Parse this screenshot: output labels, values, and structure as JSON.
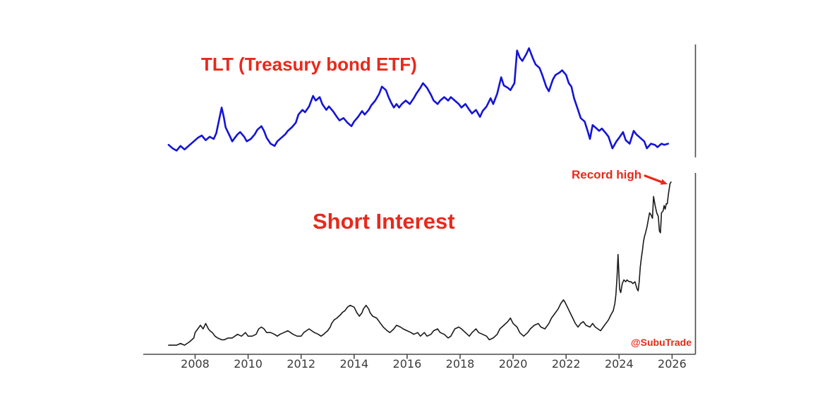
{
  "page": {
    "background": "#ffffff"
  },
  "colors": {
    "red": "#e8291c",
    "blue": "#1414d6",
    "black": "#1a1a1a",
    "axis": "#4a4a4a",
    "tick_label": "#3a3a3a"
  },
  "annotations": {
    "tlt_title": "TLT (Treasury bond ETF)",
    "si_title": "Short Interest",
    "record_high": "Record high",
    "watermark": "@SubuTrade"
  },
  "x_axis": {
    "tick_labels": [
      "2008",
      "2010",
      "2012",
      "2014",
      "2016",
      "2018",
      "2020",
      "2022",
      "2024",
      "2026"
    ]
  },
  "chart_data": [
    {
      "type": "line",
      "title": "TLT (Treasury bond ETF)",
      "panel": "top",
      "color_role": "blue",
      "xlabel": "",
      "ylabel": "",
      "x_unit": "year",
      "y_unit": "price (unlabeled axis, arbitrary 0-100 scale)",
      "xlim": [
        2007.0,
        2026.0
      ],
      "ylim": [
        0,
        100
      ],
      "grid": false,
      "legend": "none",
      "points": [
        [
          2007.0,
          12
        ],
        [
          2007.15,
          9
        ],
        [
          2007.3,
          7
        ],
        [
          2007.45,
          11
        ],
        [
          2007.6,
          8
        ],
        [
          2007.8,
          12
        ],
        [
          2007.95,
          15
        ],
        [
          2008.1,
          18
        ],
        [
          2008.25,
          20
        ],
        [
          2008.4,
          16
        ],
        [
          2008.55,
          19
        ],
        [
          2008.7,
          17
        ],
        [
          2008.8,
          22
        ],
        [
          2008.9,
          33
        ],
        [
          2009.0,
          44
        ],
        [
          2009.08,
          36
        ],
        [
          2009.15,
          27
        ],
        [
          2009.3,
          20
        ],
        [
          2009.4,
          15
        ],
        [
          2009.5,
          18
        ],
        [
          2009.6,
          21
        ],
        [
          2009.7,
          23
        ],
        [
          2009.85,
          19
        ],
        [
          2009.95,
          15
        ],
        [
          2010.1,
          17
        ],
        [
          2010.25,
          21
        ],
        [
          2010.35,
          25
        ],
        [
          2010.5,
          28
        ],
        [
          2010.6,
          24
        ],
        [
          2010.7,
          18
        ],
        [
          2010.85,
          13
        ],
        [
          2011.0,
          11
        ],
        [
          2011.1,
          15
        ],
        [
          2011.25,
          18
        ],
        [
          2011.4,
          21
        ],
        [
          2011.5,
          24
        ],
        [
          2011.65,
          27
        ],
        [
          2011.8,
          31
        ],
        [
          2011.9,
          38
        ],
        [
          2012.05,
          42
        ],
        [
          2012.15,
          40
        ],
        [
          2012.3,
          45
        ],
        [
          2012.45,
          54
        ],
        [
          2012.55,
          50
        ],
        [
          2012.7,
          53
        ],
        [
          2012.8,
          47
        ],
        [
          2012.95,
          42
        ],
        [
          2013.05,
          45
        ],
        [
          2013.2,
          41
        ],
        [
          2013.35,
          36
        ],
        [
          2013.45,
          33
        ],
        [
          2013.6,
          35
        ],
        [
          2013.75,
          31
        ],
        [
          2013.9,
          28
        ],
        [
          2014.0,
          32
        ],
        [
          2014.15,
          36
        ],
        [
          2014.3,
          41
        ],
        [
          2014.4,
          38
        ],
        [
          2014.55,
          42
        ],
        [
          2014.65,
          46
        ],
        [
          2014.8,
          50
        ],
        [
          2014.95,
          56
        ],
        [
          2015.05,
          62
        ],
        [
          2015.2,
          59
        ],
        [
          2015.3,
          53
        ],
        [
          2015.4,
          48
        ],
        [
          2015.5,
          44
        ],
        [
          2015.6,
          47
        ],
        [
          2015.7,
          44
        ],
        [
          2015.8,
          47
        ],
        [
          2015.95,
          50
        ],
        [
          2016.1,
          47
        ],
        [
          2016.25,
          52
        ],
        [
          2016.35,
          56
        ],
        [
          2016.5,
          61
        ],
        [
          2016.6,
          65
        ],
        [
          2016.75,
          61
        ],
        [
          2016.9,
          55
        ],
        [
          2017.0,
          50
        ],
        [
          2017.15,
          47
        ],
        [
          2017.25,
          50
        ],
        [
          2017.4,
          53
        ],
        [
          2017.55,
          50
        ],
        [
          2017.65,
          53
        ],
        [
          2017.8,
          50
        ],
        [
          2017.95,
          47
        ],
        [
          2018.05,
          44
        ],
        [
          2018.2,
          47
        ],
        [
          2018.35,
          42
        ],
        [
          2018.45,
          39
        ],
        [
          2018.6,
          42
        ],
        [
          2018.75,
          36
        ],
        [
          2018.85,
          41
        ],
        [
          2019.0,
          45
        ],
        [
          2019.15,
          52
        ],
        [
          2019.25,
          47
        ],
        [
          2019.4,
          56
        ],
        [
          2019.55,
          70
        ],
        [
          2019.65,
          63
        ],
        [
          2019.8,
          61
        ],
        [
          2019.9,
          59
        ],
        [
          2020.05,
          65
        ],
        [
          2020.15,
          93
        ],
        [
          2020.25,
          87
        ],
        [
          2020.35,
          84
        ],
        [
          2020.5,
          90
        ],
        [
          2020.6,
          95
        ],
        [
          2020.75,
          86
        ],
        [
          2020.85,
          81
        ],
        [
          2021.0,
          78
        ],
        [
          2021.1,
          72
        ],
        [
          2021.25,
          62
        ],
        [
          2021.35,
          58
        ],
        [
          2021.5,
          68
        ],
        [
          2021.6,
          72
        ],
        [
          2021.75,
          74
        ],
        [
          2021.85,
          76
        ],
        [
          2022.0,
          72
        ],
        [
          2022.1,
          65
        ],
        [
          2022.2,
          62
        ],
        [
          2022.3,
          52
        ],
        [
          2022.45,
          42
        ],
        [
          2022.55,
          35
        ],
        [
          2022.7,
          32
        ],
        [
          2022.8,
          25
        ],
        [
          2022.9,
          17
        ],
        [
          2023.0,
          29
        ],
        [
          2023.1,
          27
        ],
        [
          2023.25,
          24
        ],
        [
          2023.35,
          26
        ],
        [
          2023.5,
          22
        ],
        [
          2023.6,
          19
        ],
        [
          2023.75,
          9
        ],
        [
          2023.9,
          15
        ],
        [
          2024.0,
          18
        ],
        [
          2024.15,
          23
        ],
        [
          2024.25,
          16
        ],
        [
          2024.4,
          13
        ],
        [
          2024.55,
          24
        ],
        [
          2024.65,
          21
        ],
        [
          2024.8,
          18
        ],
        [
          2024.95,
          15
        ],
        [
          2025.05,
          9
        ],
        [
          2025.2,
          13
        ],
        [
          2025.35,
          12
        ],
        [
          2025.45,
          10
        ],
        [
          2025.6,
          13
        ],
        [
          2025.7,
          12
        ],
        [
          2025.85,
          13
        ]
      ]
    },
    {
      "type": "line",
      "title": "Short Interest",
      "panel": "bottom",
      "color_role": "black",
      "xlabel": "",
      "ylabel": "",
      "x_unit": "year",
      "y_unit": "short interest (unlabeled axis, arbitrary 0-100 scale)",
      "xlim": [
        2007.0,
        2026.0
      ],
      "ylim": [
        0,
        100
      ],
      "grid": false,
      "legend": "none",
      "annotation": {
        "text": "Record high",
        "target_x": 2025.96,
        "target_y": 95
      },
      "points": [
        [
          2007.0,
          5
        ],
        [
          2007.15,
          5
        ],
        [
          2007.3,
          5
        ],
        [
          2007.45,
          6
        ],
        [
          2007.6,
          5
        ],
        [
          2007.8,
          7
        ],
        [
          2007.95,
          9
        ],
        [
          2008.0,
          12
        ],
        [
          2008.1,
          14
        ],
        [
          2008.2,
          16
        ],
        [
          2008.3,
          14
        ],
        [
          2008.4,
          17
        ],
        [
          2008.5,
          14
        ],
        [
          2008.56,
          13
        ],
        [
          2008.65,
          12
        ],
        [
          2008.75,
          10
        ],
        [
          2008.85,
          9
        ],
        [
          2009.0,
          8
        ],
        [
          2009.1,
          8
        ],
        [
          2009.25,
          9
        ],
        [
          2009.4,
          9
        ],
        [
          2009.5,
          10
        ],
        [
          2009.6,
          11
        ],
        [
          2009.75,
          10
        ],
        [
          2009.9,
          12
        ],
        [
          2010.0,
          10
        ],
        [
          2010.15,
          10
        ],
        [
          2010.3,
          11
        ],
        [
          2010.4,
          14
        ],
        [
          2010.5,
          15
        ],
        [
          2010.6,
          14
        ],
        [
          2010.7,
          12
        ],
        [
          2010.85,
          12
        ],
        [
          2011.0,
          11
        ],
        [
          2011.1,
          10
        ],
        [
          2011.2,
          11
        ],
        [
          2011.35,
          12
        ],
        [
          2011.5,
          13
        ],
        [
          2011.6,
          12
        ],
        [
          2011.7,
          11
        ],
        [
          2011.85,
          10
        ],
        [
          2012.0,
          10
        ],
        [
          2012.1,
          12
        ],
        [
          2012.2,
          13
        ],
        [
          2012.3,
          14
        ],
        [
          2012.4,
          13
        ],
        [
          2012.5,
          12
        ],
        [
          2012.65,
          11
        ],
        [
          2012.75,
          10
        ],
        [
          2012.85,
          11
        ],
        [
          2013.0,
          13
        ],
        [
          2013.1,
          15
        ],
        [
          2013.15,
          17
        ],
        [
          2013.25,
          19
        ],
        [
          2013.35,
          20
        ],
        [
          2013.5,
          22
        ],
        [
          2013.55,
          23
        ],
        [
          2013.65,
          24
        ],
        [
          2013.75,
          26
        ],
        [
          2013.85,
          27
        ],
        [
          2014.0,
          26
        ],
        [
          2014.1,
          23
        ],
        [
          2014.2,
          21
        ],
        [
          2014.3,
          23
        ],
        [
          2014.35,
          25
        ],
        [
          2014.45,
          27
        ],
        [
          2014.55,
          25
        ],
        [
          2014.6,
          23
        ],
        [
          2014.7,
          21
        ],
        [
          2014.85,
          20
        ],
        [
          2015.0,
          17
        ],
        [
          2015.1,
          15
        ],
        [
          2015.25,
          13
        ],
        [
          2015.35,
          12
        ],
        [
          2015.5,
          14
        ],
        [
          2015.6,
          16
        ],
        [
          2015.75,
          15
        ],
        [
          2015.85,
          14
        ],
        [
          2016.0,
          13
        ],
        [
          2016.15,
          12
        ],
        [
          2016.25,
          11
        ],
        [
          2016.4,
          12
        ],
        [
          2016.5,
          10
        ],
        [
          2016.65,
          12
        ],
        [
          2016.75,
          10
        ],
        [
          2016.9,
          11
        ],
        [
          2017.0,
          13
        ],
        [
          2017.15,
          14
        ],
        [
          2017.25,
          12
        ],
        [
          2017.4,
          11
        ],
        [
          2017.55,
          9
        ],
        [
          2017.65,
          10
        ],
        [
          2017.8,
          14
        ],
        [
          2017.95,
          15
        ],
        [
          2018.05,
          14
        ],
        [
          2018.2,
          12
        ],
        [
          2018.35,
          10
        ],
        [
          2018.45,
          12
        ],
        [
          2018.6,
          14
        ],
        [
          2018.7,
          12
        ],
        [
          2018.85,
          11
        ],
        [
          2019.0,
          10
        ],
        [
          2019.1,
          8
        ],
        [
          2019.25,
          9
        ],
        [
          2019.4,
          11
        ],
        [
          2019.5,
          14
        ],
        [
          2019.65,
          16
        ],
        [
          2019.8,
          18
        ],
        [
          2019.9,
          20
        ],
        [
          2020.0,
          17
        ],
        [
          2020.15,
          15
        ],
        [
          2020.25,
          12
        ],
        [
          2020.4,
          10
        ],
        [
          2020.55,
          12
        ],
        [
          2020.65,
          14
        ],
        [
          2020.8,
          16
        ],
        [
          2020.95,
          17
        ],
        [
          2021.05,
          15
        ],
        [
          2021.2,
          14
        ],
        [
          2021.35,
          17
        ],
        [
          2021.45,
          20
        ],
        [
          2021.6,
          23
        ],
        [
          2021.7,
          25
        ],
        [
          2021.8,
          28
        ],
        [
          2021.9,
          30
        ],
        [
          2021.95,
          29
        ],
        [
          2022.05,
          26
        ],
        [
          2022.15,
          23
        ],
        [
          2022.25,
          20
        ],
        [
          2022.35,
          17
        ],
        [
          2022.45,
          15
        ],
        [
          2022.55,
          17
        ],
        [
          2022.65,
          18
        ],
        [
          2022.75,
          16
        ],
        [
          2022.9,
          15
        ],
        [
          2023.0,
          17
        ],
        [
          2023.1,
          15
        ],
        [
          2023.2,
          14
        ],
        [
          2023.3,
          13
        ],
        [
          2023.4,
          15
        ],
        [
          2023.5,
          17
        ],
        [
          2023.6,
          19
        ],
        [
          2023.7,
          22
        ],
        [
          2023.78,
          24
        ],
        [
          2023.84,
          28
        ],
        [
          2023.88,
          33
        ],
        [
          2023.92,
          42
        ],
        [
          2023.96,
          55
        ],
        [
          2024.0,
          42
        ],
        [
          2024.02,
          36
        ],
        [
          2024.06,
          34
        ],
        [
          2024.12,
          39
        ],
        [
          2024.18,
          41
        ],
        [
          2024.25,
          40
        ],
        [
          2024.3,
          41
        ],
        [
          2024.38,
          40
        ],
        [
          2024.45,
          40
        ],
        [
          2024.52,
          39
        ],
        [
          2024.6,
          40
        ],
        [
          2024.68,
          36
        ],
        [
          2024.72,
          35
        ],
        [
          2024.76,
          40
        ],
        [
          2024.8,
          48
        ],
        [
          2024.84,
          53
        ],
        [
          2024.88,
          57
        ],
        [
          2024.92,
          62
        ],
        [
          2024.96,
          65
        ],
        [
          2025.0,
          67
        ],
        [
          2025.05,
          70
        ],
        [
          2025.1,
          74
        ],
        [
          2025.15,
          78
        ],
        [
          2025.2,
          77
        ],
        [
          2025.26,
          75
        ],
        [
          2025.3,
          87
        ],
        [
          2025.36,
          82
        ],
        [
          2025.42,
          78
        ],
        [
          2025.48,
          76
        ],
        [
          2025.52,
          68
        ],
        [
          2025.56,
          67
        ],
        [
          2025.6,
          78
        ],
        [
          2025.66,
          79
        ],
        [
          2025.7,
          82
        ],
        [
          2025.74,
          80
        ],
        [
          2025.78,
          83
        ],
        [
          2025.82,
          83
        ],
        [
          2025.86,
          88
        ],
        [
          2025.92,
          94
        ],
        [
          2025.96,
          95
        ]
      ]
    }
  ]
}
